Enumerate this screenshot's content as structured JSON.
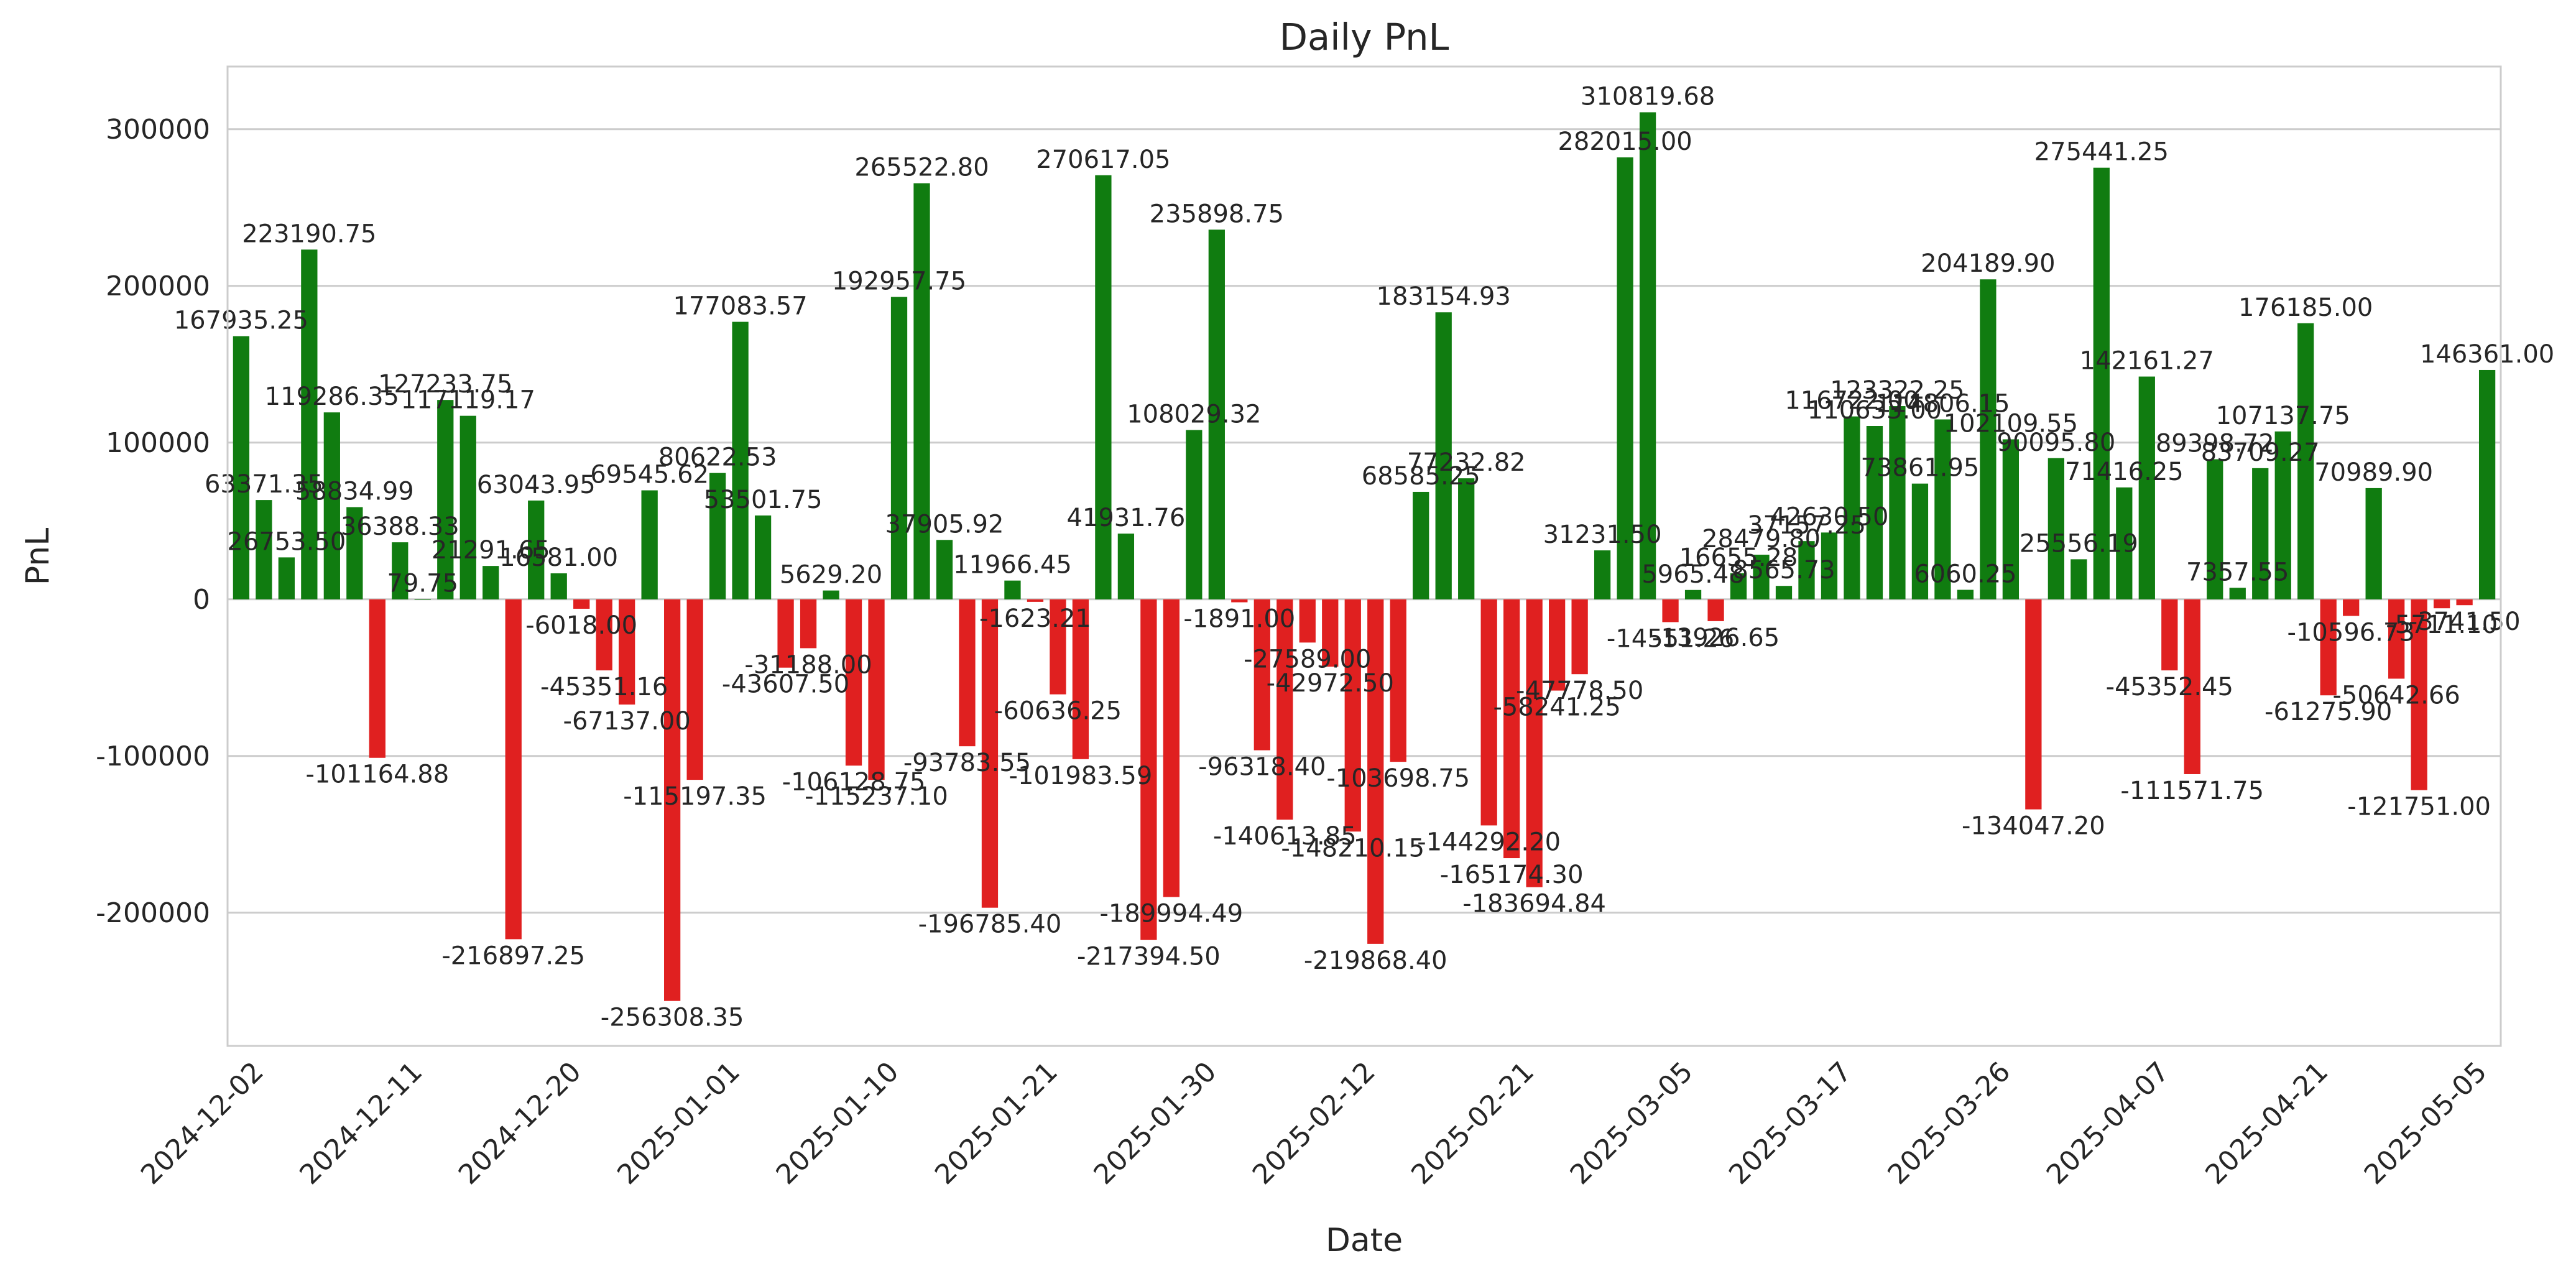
{
  "chart_data": {
    "type": "bar",
    "title": "Daily PnL",
    "xlabel": "Date",
    "ylabel": "PnL",
    "ylim": [
      -285000,
      340000
    ],
    "yticks": [
      -200000,
      -100000,
      0,
      100000,
      200000,
      300000
    ],
    "grid": "y",
    "colors": {
      "positive": "#107c10",
      "negative": "#e02020"
    },
    "x_tick_labels": [
      {
        "index": 0,
        "label": "2024-12-02"
      },
      {
        "index": 7,
        "label": "2024-12-11"
      },
      {
        "index": 14,
        "label": "2024-12-20"
      },
      {
        "index": 21,
        "label": "2025-01-01"
      },
      {
        "index": 28,
        "label": "2025-01-10"
      },
      {
        "index": 35,
        "label": "2025-01-21"
      },
      {
        "index": 42,
        "label": "2025-01-30"
      },
      {
        "index": 49,
        "label": "2025-02-12"
      },
      {
        "index": 56,
        "label": "2025-02-21"
      },
      {
        "index": 63,
        "label": "2025-03-05"
      },
      {
        "index": 70,
        "label": "2025-03-17"
      },
      {
        "index": 77,
        "label": "2025-03-26"
      },
      {
        "index": 84,
        "label": "2025-04-07"
      },
      {
        "index": 91,
        "label": "2025-04-21"
      },
      {
        "index": 98,
        "label": "2025-05-05"
      }
    ],
    "values": [
      167935.25,
      63371.35,
      26753.5,
      223190.75,
      119286.35,
      58834.99,
      -101164.88,
      36388.33,
      79.75,
      127233.75,
      117119.17,
      21291.65,
      -216897.25,
      63043.95,
      16581.0,
      -6018.0,
      -45351.16,
      -67137.0,
      69545.62,
      -256308.35,
      -115197.35,
      80622.53,
      177083.57,
      53501.75,
      -43607.5,
      -31188.0,
      5629.2,
      -106128.75,
      -115237.1,
      192957.75,
      265522.8,
      37905.92,
      -93783.55,
      -196785.4,
      11966.45,
      -1623.21,
      -60636.25,
      -101983.59,
      270617.05,
      41931.76,
      -217394.5,
      -189994.49,
      108029.32,
      235898.75,
      -1891.0,
      -96318.4,
      -140613.85,
      -27589.0,
      -42972.5,
      -148210.15,
      -219868.4,
      -103698.75,
      68585.25,
      183154.93,
      77232.82,
      -144292.2,
      -165174.3,
      -183694.84,
      -58241.25,
      -47778.5,
      31231.5,
      282015.0,
      310819.68,
      -14551.26,
      5965.48,
      -13926.65,
      16655.28,
      28479.8,
      8565.73,
      37157.25,
      42630.5,
      116722.0,
      110633.0,
      123322.25,
      73861.95,
      114806.15,
      6060.25,
      204189.9,
      102109.55,
      -134047.2,
      90095.8,
      25556.19,
      275441.25,
      71416.25,
      142161.27,
      -45352.45,
      -111571.75,
      89398.72,
      7357.55,
      83709.27,
      107137.75,
      176185.0,
      -61275.9,
      -10596.73,
      70989.9,
      -50642.66,
      -121751.0,
      -5711.1,
      -3741.5,
      146361.0
    ]
  }
}
